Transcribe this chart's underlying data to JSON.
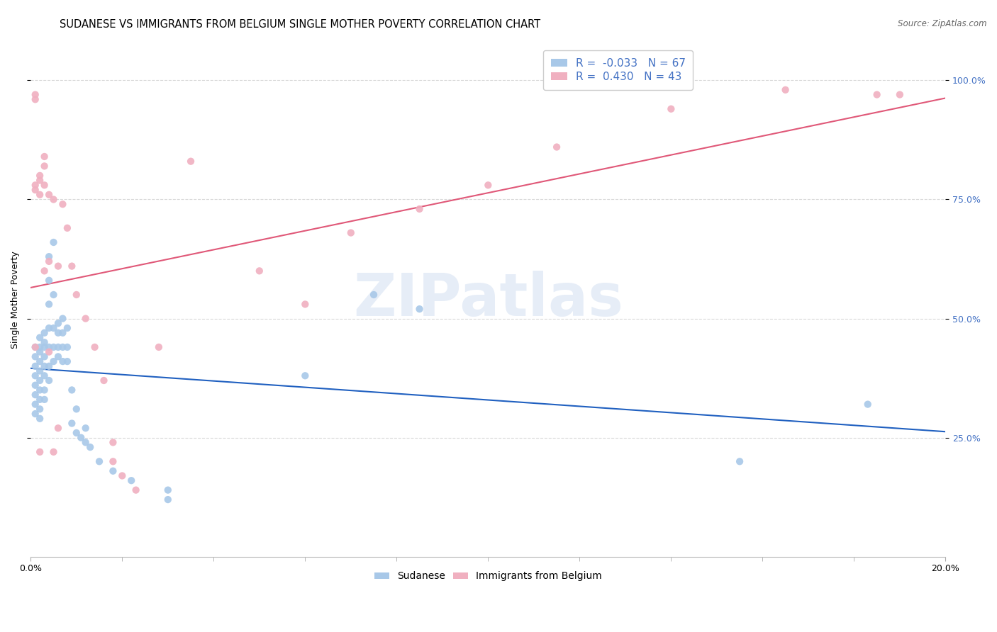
{
  "title": "SUDANESE VS IMMIGRANTS FROM BELGIUM SINGLE MOTHER POVERTY CORRELATION CHART",
  "source": "Source: ZipAtlas.com",
  "ylabel": "Single Mother Poverty",
  "watermark_text": "ZIPatlas",
  "legend_entries": [
    {
      "label": "Sudanese",
      "color": "#a8c8e8",
      "line_color": "#2060c0",
      "R": -0.033,
      "N": 67
    },
    {
      "label": "Immigrants from Belgium",
      "color": "#f0b0c0",
      "line_color": "#e05878",
      "R": 0.43,
      "N": 43
    }
  ],
  "background_color": "#ffffff",
  "grid_color": "#d8d8d8",
  "title_fontsize": 10.5,
  "axis_label_fontsize": 9,
  "tick_fontsize": 9,
  "legend_fontsize": 11,
  "marker_size": 55,
  "xlim": [
    0.0,
    0.2
  ],
  "ylim": [
    0.0,
    1.08
  ],
  "yticks": [
    0.25,
    0.5,
    0.75,
    1.0
  ],
  "xticks_minor": [
    0.025,
    0.05,
    0.075,
    0.1,
    0.125,
    0.15,
    0.175
  ],
  "sudanese_x": [
    0.001,
    0.001,
    0.001,
    0.001,
    0.001,
    0.001,
    0.001,
    0.001,
    0.002,
    0.002,
    0.002,
    0.002,
    0.002,
    0.002,
    0.002,
    0.002,
    0.002,
    0.002,
    0.003,
    0.003,
    0.003,
    0.003,
    0.003,
    0.003,
    0.003,
    0.003,
    0.004,
    0.004,
    0.004,
    0.004,
    0.004,
    0.004,
    0.004,
    0.005,
    0.005,
    0.005,
    0.005,
    0.005,
    0.006,
    0.006,
    0.006,
    0.006,
    0.007,
    0.007,
    0.007,
    0.007,
    0.008,
    0.008,
    0.008,
    0.009,
    0.009,
    0.01,
    0.01,
    0.011,
    0.012,
    0.012,
    0.013,
    0.015,
    0.018,
    0.022,
    0.03,
    0.03,
    0.06,
    0.075,
    0.085,
    0.155,
    0.183
  ],
  "sudanese_y": [
    0.44,
    0.42,
    0.4,
    0.38,
    0.36,
    0.34,
    0.32,
    0.3,
    0.46,
    0.44,
    0.43,
    0.41,
    0.39,
    0.37,
    0.35,
    0.33,
    0.31,
    0.29,
    0.47,
    0.45,
    0.44,
    0.42,
    0.4,
    0.38,
    0.35,
    0.33,
    0.63,
    0.58,
    0.53,
    0.48,
    0.44,
    0.4,
    0.37,
    0.66,
    0.55,
    0.48,
    0.44,
    0.41,
    0.49,
    0.47,
    0.44,
    0.42,
    0.5,
    0.47,
    0.44,
    0.41,
    0.48,
    0.44,
    0.41,
    0.35,
    0.28,
    0.31,
    0.26,
    0.25,
    0.27,
    0.24,
    0.23,
    0.2,
    0.18,
    0.16,
    0.14,
    0.12,
    0.38,
    0.55,
    0.52,
    0.2,
    0.32
  ],
  "belgium_x": [
    0.001,
    0.001,
    0.001,
    0.001,
    0.001,
    0.002,
    0.002,
    0.002,
    0.002,
    0.003,
    0.003,
    0.003,
    0.003,
    0.004,
    0.004,
    0.004,
    0.005,
    0.005,
    0.006,
    0.006,
    0.007,
    0.008,
    0.009,
    0.01,
    0.012,
    0.014,
    0.016,
    0.018,
    0.018,
    0.02,
    0.023,
    0.028,
    0.035,
    0.05,
    0.06,
    0.07,
    0.085,
    0.1,
    0.115,
    0.14,
    0.165,
    0.185,
    0.19
  ],
  "belgium_y": [
    0.97,
    0.96,
    0.78,
    0.77,
    0.44,
    0.8,
    0.79,
    0.76,
    0.22,
    0.84,
    0.82,
    0.78,
    0.6,
    0.76,
    0.62,
    0.43,
    0.75,
    0.22,
    0.61,
    0.27,
    0.74,
    0.69,
    0.61,
    0.55,
    0.5,
    0.44,
    0.37,
    0.24,
    0.2,
    0.17,
    0.14,
    0.44,
    0.83,
    0.6,
    0.53,
    0.68,
    0.73,
    0.78,
    0.86,
    0.94,
    0.98,
    0.97,
    0.97
  ]
}
